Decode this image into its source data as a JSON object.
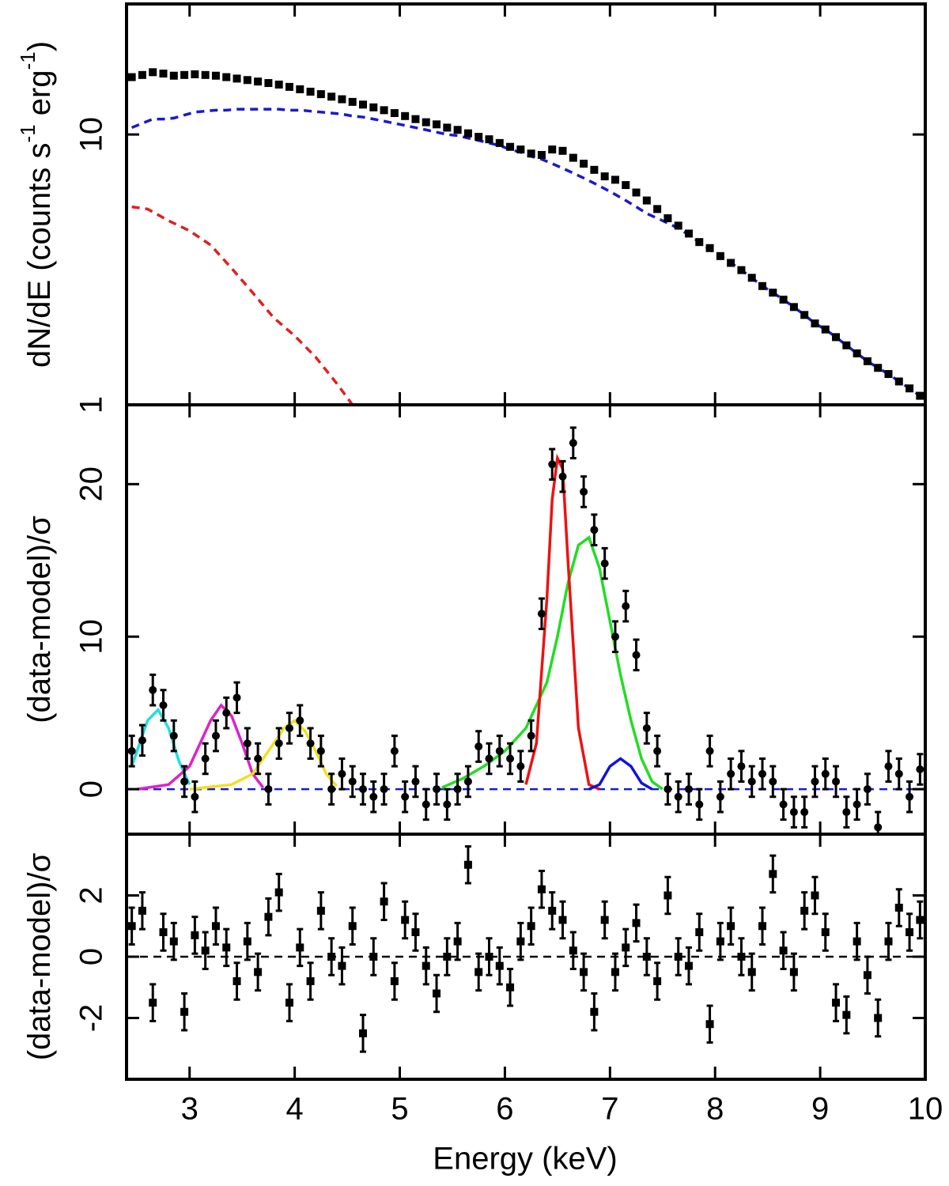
{
  "chart_data": [
    {
      "type": "scatter",
      "yscale": "log",
      "ylabel": [
        "dN/dE (counts s",
        "-1",
        " erg",
        "-1",
        ")"
      ],
      "ylim": [
        1,
        30.4
      ],
      "yticks": [
        1,
        10
      ],
      "x": [
        2.45,
        2.55,
        2.65,
        2.75,
        2.85,
        2.95,
        3.05,
        3.15,
        3.25,
        3.35,
        3.45,
        3.55,
        3.65,
        3.75,
        3.85,
        3.95,
        4.05,
        4.15,
        4.25,
        4.35,
        4.45,
        4.55,
        4.65,
        4.75,
        4.85,
        4.95,
        5.05,
        5.15,
        5.25,
        5.35,
        5.45,
        5.55,
        5.65,
        5.75,
        5.85,
        5.95,
        6.05,
        6.15,
        6.25,
        6.35,
        6.45,
        6.55,
        6.65,
        6.75,
        6.85,
        6.95,
        7.05,
        7.15,
        7.25,
        7.35,
        7.45,
        7.55,
        7.65,
        7.75,
        7.85,
        7.95,
        8.05,
        8.15,
        8.25,
        8.35,
        8.45,
        8.55,
        8.65,
        8.75,
        8.85,
        8.95,
        9.05,
        9.15,
        9.25,
        9.35,
        9.45,
        9.55,
        9.65,
        9.75,
        9.85,
        9.95
      ],
      "series": [
        {
          "color": "#1a1acc",
          "style": "dashed",
          "values": [
            10.6,
            11.0,
            11.4,
            11.4,
            11.5,
            11.8,
            12.1,
            12.2,
            12.3,
            12.3,
            12.4,
            12.4,
            12.4,
            12.4,
            12.4,
            12.3,
            12.3,
            12.2,
            12.1,
            12.0,
            11.9,
            11.7,
            11.6,
            11.4,
            11.2,
            11.0,
            10.8,
            10.6,
            10.4,
            10.2,
            10.0,
            9.9,
            9.7,
            9.5,
            9.3,
            9.1,
            8.8,
            8.6,
            8.3,
            8.1,
            7.8,
            7.5,
            7.2,
            6.9,
            6.6,
            6.3,
            6.0,
            5.7,
            5.4,
            5.1,
            4.9,
            4.7,
            4.5,
            4.25,
            4.0,
            3.75,
            3.55,
            3.35,
            3.15,
            2.95,
            2.75,
            2.6,
            2.45,
            2.3,
            2.15,
            2.0,
            1.9,
            1.78,
            1.66,
            1.55,
            1.45,
            1.37,
            1.3,
            1.22,
            1.15,
            1.08
          ]
        },
        {
          "color": "#e02020",
          "style": "dashed",
          "x": [
            2.45,
            2.6,
            2.8,
            3.0,
            3.2,
            3.4,
            3.6,
            3.8,
            4.0,
            4.2,
            4.4,
            4.55
          ],
          "values": [
            5.4,
            5.3,
            4.8,
            4.4,
            3.9,
            3.2,
            2.6,
            2.1,
            1.8,
            1.5,
            1.2,
            1.0
          ]
        },
        {
          "color": "#000000",
          "style": "points",
          "marker": "square",
          "values": [
            16.3,
            16.6,
            17.0,
            16.8,
            16.5,
            16.6,
            16.7,
            16.6,
            16.5,
            16.3,
            16.1,
            15.9,
            15.7,
            15.5,
            15.3,
            15.0,
            14.7,
            14.4,
            14.1,
            13.8,
            13.5,
            13.2,
            12.9,
            12.6,
            12.3,
            12.0,
            11.7,
            11.4,
            11.1,
            10.9,
            10.6,
            10.4,
            10.1,
            9.8,
            9.6,
            9.3,
            9.0,
            8.8,
            8.5,
            8.4,
            8.8,
            8.7,
            8.2,
            7.8,
            7.4,
            7.0,
            6.8,
            6.5,
            6.1,
            5.7,
            5.3,
            4.9,
            4.6,
            4.3,
            4.0,
            3.8,
            3.55,
            3.35,
            3.15,
            2.95,
            2.75,
            2.6,
            2.45,
            2.3,
            2.15,
            2.0,
            1.9,
            1.78,
            1.66,
            1.55,
            1.45,
            1.37,
            1.3,
            1.22,
            1.15,
            1.08
          ]
        }
      ]
    },
    {
      "type": "scatter",
      "yscale": "linear",
      "ylabel": [
        "(data-model)/σ"
      ],
      "ylim": [
        -2.95,
        25.2
      ],
      "yticks": [
        0,
        10,
        20
      ],
      "hline": 0,
      "hline_color": "#1a1acc",
      "x": [
        2.45,
        2.55,
        2.65,
        2.75,
        2.85,
        2.95,
        3.05,
        3.15,
        3.25,
        3.35,
        3.45,
        3.55,
        3.65,
        3.75,
        3.85,
        3.95,
        4.05,
        4.15,
        4.25,
        4.35,
        4.45,
        4.55,
        4.65,
        4.75,
        4.85,
        4.95,
        5.05,
        5.15,
        5.25,
        5.35,
        5.45,
        5.55,
        5.65,
        5.75,
        5.85,
        5.95,
        6.05,
        6.15,
        6.25,
        6.35,
        6.45,
        6.55,
        6.65,
        6.75,
        6.85,
        6.95,
        7.05,
        7.15,
        7.25,
        7.35,
        7.45,
        7.55,
        7.65,
        7.75,
        7.85,
        7.95,
        8.05,
        8.15,
        8.25,
        8.35,
        8.45,
        8.55,
        8.65,
        8.75,
        8.85,
        8.95,
        9.05,
        9.15,
        9.25,
        9.35,
        9.45,
        9.55,
        9.65,
        9.75,
        9.85,
        9.95
      ],
      "series": [
        {
          "color": "#22dddd",
          "style": "solid",
          "x": [
            2.45,
            2.55,
            2.6,
            2.7,
            2.8,
            2.9,
            3.0
          ],
          "values": [
            1.5,
            3.5,
            4.5,
            5.2,
            4.0,
            1.8,
            0.3
          ]
        },
        {
          "color": "#dd22cc",
          "style": "solid",
          "x": [
            2.5,
            2.8,
            3.0,
            3.1,
            3.2,
            3.3,
            3.4,
            3.5,
            3.6,
            3.7
          ],
          "values": [
            0,
            0.3,
            1.5,
            3.0,
            4.5,
            5.5,
            4.8,
            3.0,
            1.0,
            0.1
          ]
        },
        {
          "color": "#f0e020",
          "style": "solid",
          "x": [
            3.0,
            3.4,
            3.6,
            3.7,
            3.8,
            3.9,
            4.0,
            4.1,
            4.2,
            4.3,
            4.4
          ],
          "values": [
            0,
            0.3,
            1.0,
            2.0,
            3.0,
            4.0,
            4.5,
            3.8,
            2.5,
            1.0,
            0.2
          ]
        },
        {
          "color": "#22dd22",
          "style": "solid",
          "x": [
            5.4,
            5.6,
            5.8,
            6.0,
            6.2,
            6.3,
            6.4,
            6.5,
            6.6,
            6.7,
            6.8,
            6.9,
            7.0,
            7.1,
            7.2,
            7.3,
            7.4,
            7.5
          ],
          "values": [
            0.1,
            0.7,
            1.5,
            2.5,
            4.0,
            5.5,
            7.0,
            10.0,
            13.5,
            16.0,
            16.5,
            14.5,
            11.0,
            7.5,
            4.5,
            2.0,
            0.5,
            0
          ]
        },
        {
          "color": "#ee1111",
          "style": "solid",
          "x": [
            6.2,
            6.3,
            6.4,
            6.45,
            6.5,
            6.55,
            6.6,
            6.7,
            6.8,
            6.9
          ],
          "values": [
            0.3,
            3.0,
            12.5,
            19.0,
            21.7,
            21.0,
            15.0,
            4.0,
            0.3,
            0
          ]
        },
        {
          "color": "#1111dd",
          "style": "solid",
          "x": [
            6.8,
            6.9,
            7.0,
            7.1,
            7.2,
            7.3,
            7.4
          ],
          "values": [
            0,
            0.3,
            1.5,
            2.0,
            1.5,
            0.4,
            0
          ]
        },
        {
          "color": "#000000",
          "style": "points",
          "marker": "circle",
          "error": 1,
          "values": [
            2.5,
            3.2,
            6.5,
            5.5,
            3.5,
            0.5,
            -0.5,
            2.0,
            3.5,
            5.0,
            6.0,
            3.0,
            2.0,
            0.0,
            3.0,
            4.0,
            4.5,
            3.0,
            2.5,
            0.0,
            1.0,
            0.5,
            0.0,
            -0.5,
            0.0,
            2.5,
            -0.5,
            0.5,
            -1.0,
            0.0,
            -1.0,
            0.0,
            0.5,
            2.8,
            2.0,
            2.5,
            2.0,
            1.5,
            3.5,
            11.5,
            21.3,
            20.5,
            22.7,
            19.5,
            17.0,
            14.8,
            10.0,
            12.0,
            8.8,
            4.0,
            2.5,
            0.0,
            -0.5,
            0.0,
            -1.0,
            2.5,
            -0.5,
            1.0,
            1.5,
            0.5,
            1.0,
            0.5,
            -1.0,
            -1.5,
            -1.5,
            0.5,
            1.0,
            0.5,
            -1.5,
            -1.0,
            0.0,
            -2.5,
            1.5,
            1.0,
            -0.5,
            1.3
          ]
        }
      ]
    },
    {
      "type": "scatter",
      "yscale": "linear",
      "ylabel": [
        "(data-model)/σ"
      ],
      "xlabel": "Energy (keV)",
      "xlim": [
        2.4,
        10
      ],
      "xticks": [
        3,
        4,
        5,
        6,
        7,
        8,
        9,
        10
      ],
      "ylim": [
        -4,
        4
      ],
      "yticks": [
        -2,
        0,
        2
      ],
      "hline": 0,
      "hline_color": "#000000",
      "x": [
        2.45,
        2.55,
        2.65,
        2.75,
        2.85,
        2.95,
        3.05,
        3.15,
        3.25,
        3.35,
        3.45,
        3.55,
        3.65,
        3.75,
        3.85,
        3.95,
        4.05,
        4.15,
        4.25,
        4.35,
        4.45,
        4.55,
        4.65,
        4.75,
        4.85,
        4.95,
        5.05,
        5.15,
        5.25,
        5.35,
        5.45,
        5.55,
        5.65,
        5.75,
        5.85,
        5.95,
        6.05,
        6.15,
        6.25,
        6.35,
        6.45,
        6.55,
        6.65,
        6.75,
        6.85,
        6.95,
        7.05,
        7.15,
        7.25,
        7.35,
        7.45,
        7.55,
        7.65,
        7.75,
        7.85,
        7.95,
        8.05,
        8.15,
        8.25,
        8.35,
        8.45,
        8.55,
        8.65,
        8.75,
        8.85,
        8.95,
        9.05,
        9.15,
        9.25,
        9.35,
        9.45,
        9.55,
        9.65,
        9.75,
        9.85,
        9.95
      ],
      "series": [
        {
          "color": "#000000",
          "style": "points",
          "marker": "square",
          "error": 0.6,
          "values": [
            1.0,
            1.5,
            -1.5,
            0.8,
            0.5,
            -1.8,
            0.7,
            0.2,
            1.0,
            0.3,
            -0.8,
            0.5,
            -0.5,
            1.3,
            2.1,
            -1.5,
            0.3,
            -0.8,
            1.5,
            0.0,
            -0.3,
            1.0,
            -2.5,
            0.0,
            1.8,
            -0.8,
            1.2,
            0.8,
            -0.3,
            -1.2,
            0.0,
            0.5,
            3.0,
            -0.5,
            0.0,
            -0.3,
            -1.0,
            0.5,
            1.0,
            2.2,
            1.5,
            1.2,
            0.2,
            -0.5,
            -1.8,
            1.2,
            -0.5,
            0.3,
            1.1,
            0.0,
            -0.8,
            2.0,
            0.0,
            -0.3,
            0.8,
            -2.2,
            0.5,
            1.0,
            0.0,
            -0.5,
            1.0,
            2.7,
            0.2,
            -0.5,
            1.5,
            2.0,
            0.8,
            -1.5,
            -1.9,
            0.5,
            -0.6,
            -2.0,
            0.5,
            1.6,
            0.8,
            1.2
          ]
        }
      ]
    }
  ]
}
